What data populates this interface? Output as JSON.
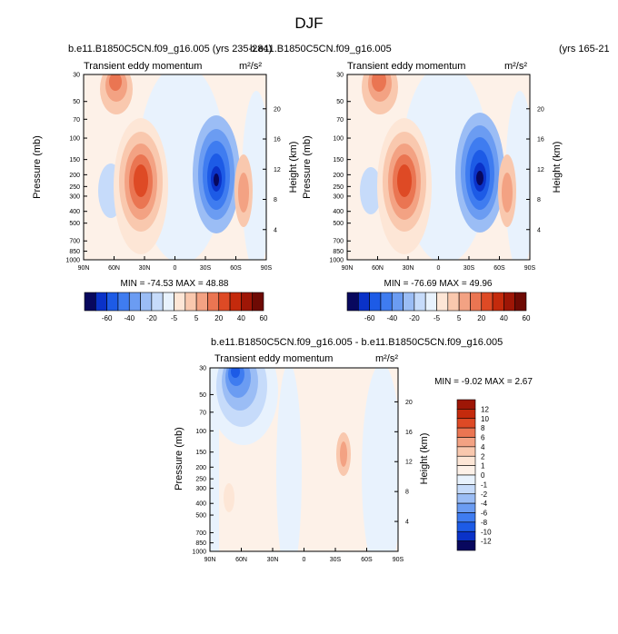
{
  "figure": {
    "title": "DJF"
  },
  "chart_data": [
    {
      "type": "heatmap",
      "panel": "top-left",
      "case_title": "b.e11.B1850C5CN.f09_g16.005 (yrs 235-284)",
      "subtitle": "Transient eddy momentum",
      "units": "m²/s²",
      "xlabel": "",
      "ylabel": "Pressure (mb)",
      "y2label": "Height (km)",
      "x_ticks": [
        "90N",
        "60N",
        "30N",
        "0",
        "30S",
        "60S",
        "90S"
      ],
      "y_ticks": [
        "30",
        "50",
        "70",
        "100",
        "150",
        "200",
        "250",
        "300",
        "400",
        "500",
        "700",
        "850",
        "1000"
      ],
      "y2_ticks": [
        "20",
        "16",
        "12",
        "8",
        "4"
      ],
      "min_max_text": "MIN = -74.53   MAX =  48.88",
      "colorbar_labels": [
        "-60",
        "-40",
        "-20",
        "-5",
        "5",
        "20",
        "40",
        "60"
      ],
      "colorbar_colors": [
        "#08085e",
        "#0a32c8",
        "#1d5be6",
        "#3f7cf0",
        "#6b9cf2",
        "#9bbdf5",
        "#c6dbfa",
        "#e8f2fd",
        "#fde6d6",
        "#f9c8ae",
        "#f3a283",
        "#ea7552",
        "#de4a25",
        "#c42a0c",
        "#9e1606",
        "#6e0a04"
      ]
    },
    {
      "type": "heatmap",
      "panel": "top-right",
      "case_title": "b.e11.B1850C5CN.f09_g16.005",
      "case_years": "(yrs 165-21",
      "subtitle": "Transient eddy momentum",
      "units": "m²/s²",
      "xlabel": "",
      "ylabel": "Pressure (mb)",
      "y2label": "Height (km)",
      "x_ticks": [
        "90N",
        "60N",
        "30N",
        "0",
        "30S",
        "60S",
        "90S"
      ],
      "y_ticks": [
        "30",
        "50",
        "70",
        "100",
        "150",
        "200",
        "250",
        "300",
        "400",
        "500",
        "700",
        "850",
        "1000"
      ],
      "y2_ticks": [
        "20",
        "16",
        "12",
        "8",
        "4"
      ],
      "min_max_text": "MIN = -76.69   MAX =  49.96",
      "colorbar_labels": [
        "-60",
        "-40",
        "-20",
        "-5",
        "5",
        "20",
        "40",
        "60"
      ]
    },
    {
      "type": "heatmap",
      "panel": "bottom-difference",
      "case_title": "b.e11.B1850C5CN.f09_g16.005 - b.e11.B1850C5CN.f09_g16.005",
      "subtitle": "Transient eddy momentum",
      "units": "m²/s²",
      "xlabel": "",
      "ylabel": "Pressure (mb)",
      "y2label": "Height (km)",
      "x_ticks": [
        "90N",
        "60N",
        "30N",
        "0",
        "30S",
        "60S",
        "90S"
      ],
      "y_ticks": [
        "30",
        "50",
        "70",
        "100",
        "150",
        "200",
        "250",
        "300",
        "400",
        "500",
        "700",
        "850",
        "1000"
      ],
      "y2_ticks": [
        "20",
        "16",
        "12",
        "8",
        "4"
      ],
      "min_max_text": "MIN =  -9.02   MAX =   2.67",
      "colorbar_labels": [
        "12",
        "10",
        "8",
        "6",
        "4",
        "2",
        "1",
        "0",
        "-1",
        "-2",
        "-4",
        "-6",
        "-8",
        "-10",
        "-12"
      ],
      "colorbar_colors": [
        "#9e1606",
        "#c42a0c",
        "#de4a25",
        "#ea7552",
        "#f3a283",
        "#f9c8ae",
        "#fde6d6",
        "#fdf1e8",
        "#e8f2fd",
        "#c6dbfa",
        "#9bbdf5",
        "#6b9cf2",
        "#3f7cf0",
        "#1d5be6",
        "#0a32c8",
        "#08085e"
      ]
    }
  ]
}
